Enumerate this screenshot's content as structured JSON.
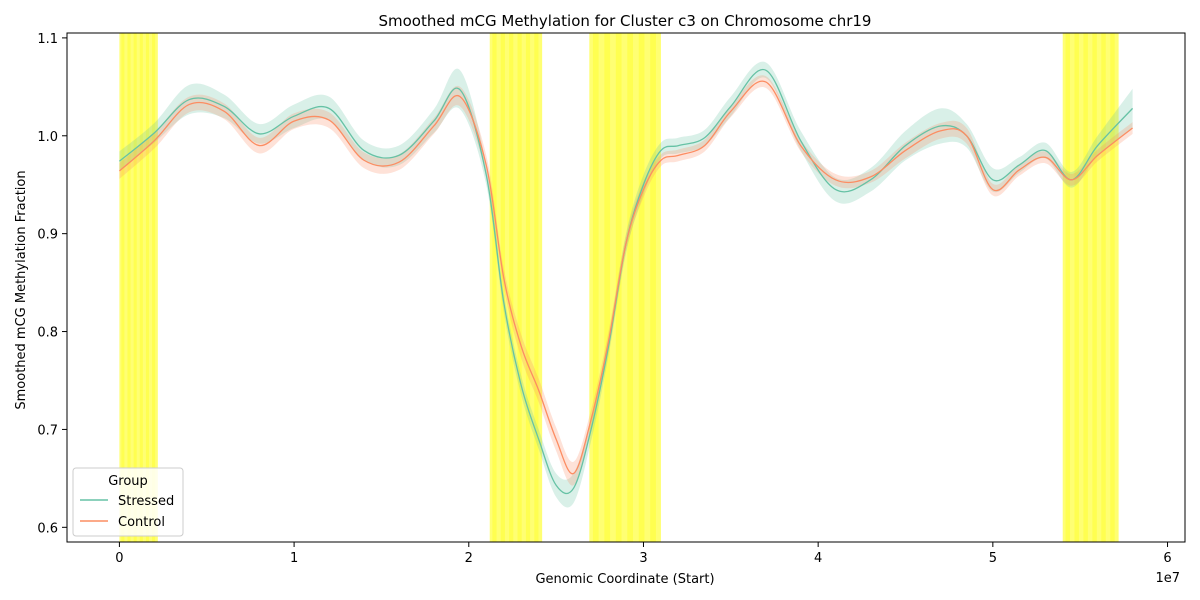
{
  "chart_data": {
    "type": "line",
    "title": "Smoothed mCG Methylation for Cluster c3 on Chromosome chr19",
    "xlabel": "Genomic Coordinate (Start)",
    "ylabel": "Smoothed mCG Methylation Fraction",
    "x_offset_label": "1e7",
    "xlim": [
      -0.3,
      6.1
    ],
    "ylim": [
      0.585,
      1.105
    ],
    "x_ticks": [
      0,
      1,
      2,
      3,
      4,
      5,
      6
    ],
    "x_tick_labels": [
      "0",
      "1",
      "2",
      "3",
      "4",
      "5",
      "6"
    ],
    "y_ticks": [
      0.6,
      0.7,
      0.8,
      0.9,
      1.0,
      1.1
    ],
    "y_tick_labels": [
      "0.6",
      "0.7",
      "0.8",
      "0.9",
      "1.0",
      "1.1"
    ],
    "grid": false,
    "legend": {
      "title": "Group",
      "placement": "lower-left"
    },
    "highlight_color": "#ffff00",
    "highlight_regions": [
      [
        0.0,
        0.22
      ],
      [
        2.12,
        2.42
      ],
      [
        2.69,
        3.1
      ],
      [
        5.4,
        5.72
      ]
    ],
    "x": [
      0,
      0.2,
      0.4,
      0.6,
      0.8,
      1.0,
      1.2,
      1.4,
      1.6,
      1.8,
      1.95,
      2.1,
      2.2,
      2.3,
      2.4,
      2.5,
      2.6,
      2.7,
      2.8,
      2.9,
      3.0,
      3.1,
      3.2,
      3.35,
      3.5,
      3.7,
      3.9,
      4.1,
      4.3,
      4.5,
      4.7,
      4.85,
      5.0,
      5.15,
      5.3,
      5.45,
      5.6,
      5.8
    ],
    "series": [
      {
        "name": "Stressed",
        "color": "#66c2a5",
        "band_color": "#66c2a5",
        "values": [
          0.974,
          1.003,
          1.037,
          1.03,
          1.002,
          1.02,
          1.028,
          0.985,
          0.98,
          1.015,
          1.047,
          0.96,
          0.83,
          0.745,
          0.69,
          0.643,
          0.64,
          0.7,
          0.785,
          0.89,
          0.95,
          0.985,
          0.99,
          0.998,
          1.03,
          1.067,
          0.995,
          0.945,
          0.955,
          0.99,
          1.01,
          1.0,
          0.955,
          0.97,
          0.985,
          0.955,
          0.99,
          1.028
        ],
        "band_halfwidth": [
          0.01,
          0.01,
          0.015,
          0.012,
          0.01,
          0.012,
          0.012,
          0.01,
          0.01,
          0.012,
          0.02,
          0.01,
          0.01,
          0.01,
          0.01,
          0.012,
          0.015,
          0.012,
          0.01,
          0.01,
          0.01,
          0.008,
          0.008,
          0.008,
          0.01,
          0.008,
          0.01,
          0.012,
          0.012,
          0.015,
          0.018,
          0.012,
          0.012,
          0.008,
          0.008,
          0.008,
          0.01,
          0.02
        ]
      },
      {
        "name": "Control",
        "color": "#fc8d62",
        "band_color": "#fc8d62",
        "values": [
          0.964,
          0.995,
          1.032,
          1.025,
          0.99,
          1.015,
          1.016,
          0.975,
          0.973,
          1.01,
          1.04,
          0.97,
          0.855,
          0.785,
          0.74,
          0.69,
          0.655,
          0.71,
          0.79,
          0.89,
          0.945,
          0.975,
          0.98,
          0.99,
          1.025,
          1.055,
          0.99,
          0.955,
          0.958,
          0.985,
          1.005,
          1.0,
          0.945,
          0.965,
          0.978,
          0.955,
          0.98,
          1.008
        ],
        "band_halfwidth": [
          0.008,
          0.008,
          0.008,
          0.008,
          0.008,
          0.008,
          0.008,
          0.008,
          0.008,
          0.008,
          0.01,
          0.01,
          0.01,
          0.012,
          0.012,
          0.012,
          0.012,
          0.01,
          0.01,
          0.008,
          0.008,
          0.006,
          0.006,
          0.006,
          0.006,
          0.006,
          0.006,
          0.006,
          0.006,
          0.008,
          0.008,
          0.008,
          0.006,
          0.006,
          0.006,
          0.006,
          0.006,
          0.006
        ]
      }
    ]
  }
}
